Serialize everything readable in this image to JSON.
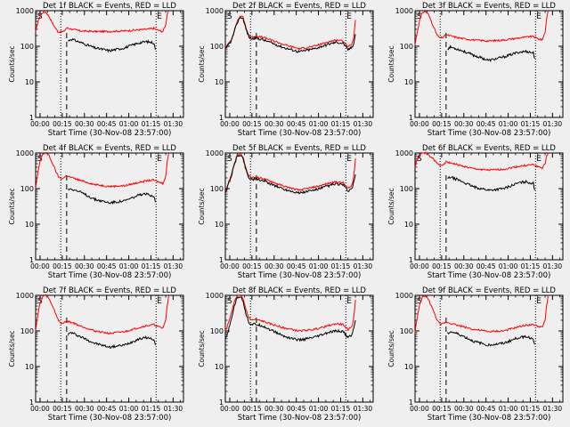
{
  "chart_data": {
    "type": "line",
    "layout": "3x3 grid",
    "xlabel": "Start Time (30-Nov-08 23:57:00)",
    "ylabel": "Counts/sec",
    "yscale": "log",
    "ylim": [
      1,
      1000
    ],
    "xlim_minutes": [
      0,
      100
    ],
    "x_tick_labels": [
      "00:00",
      "00:15",
      "00:30",
      "00:45",
      "01:00",
      "01:15",
      "01:30"
    ],
    "x_tick_minutes": [
      3,
      18,
      33,
      48,
      63,
      78,
      93
    ],
    "y_tick_labels": [
      "1",
      "10",
      "100",
      "1000"
    ],
    "y_tick_values": [
      1,
      10,
      100,
      1000
    ],
    "start_marker": "S",
    "end_marker": "E",
    "start_marker_minute": 17,
    "end_marker_minute": 81.5,
    "dashed_marker_minute": 21,
    "colors": {
      "events": "#000000",
      "lld": "#ff0000",
      "background": "#efefef"
    },
    "panels": [
      {
        "title": "Det 1f BLACK = Events, RED = LLD",
        "events": {
          "x": [
            22,
            24,
            30,
            40,
            50,
            60,
            70,
            75,
            80,
            81
          ],
          "y": [
            140,
            160,
            130,
            90,
            75,
            90,
            125,
            135,
            125,
            80
          ]
        },
        "lld": {
          "x": [
            0,
            1,
            3,
            5,
            7,
            9,
            12,
            15,
            17,
            19,
            21,
            25,
            30,
            40,
            50,
            60,
            70,
            75,
            80,
            82,
            86,
            88,
            89,
            90
          ],
          "y": [
            240,
            400,
            700,
            900,
            900,
            700,
            400,
            260,
            250,
            260,
            330,
            300,
            270,
            260,
            260,
            270,
            290,
            300,
            320,
            290,
            260,
            400,
            800,
            1000
          ]
        }
      },
      {
        "title": "Det 2f BLACK = Events, RED = LLD",
        "events": {
          "x": [
            0,
            1,
            2,
            4,
            6,
            8,
            10,
            12,
            14,
            16,
            18,
            20,
            25,
            30,
            40,
            50,
            60,
            70,
            75,
            80,
            81,
            83,
            85,
            86,
            87,
            88
          ],
          "y": [
            80,
            90,
            110,
            140,
            250,
            450,
            650,
            600,
            300,
            180,
            160,
            170,
            155,
            130,
            90,
            70,
            85,
            115,
            130,
            120,
            100,
            80,
            90,
            100,
            130,
            220
          ]
        },
        "lld": {
          "x": [
            0,
            1,
            2,
            4,
            6,
            8,
            10,
            12,
            14,
            16,
            18,
            20,
            25,
            30,
            40,
            50,
            60,
            70,
            75,
            80,
            81,
            83,
            85,
            86,
            87,
            88
          ],
          "y": [
            85,
            100,
            120,
            150,
            270,
            500,
            700,
            650,
            330,
            200,
            180,
            190,
            180,
            155,
            110,
            85,
            100,
            135,
            150,
            140,
            120,
            95,
            110,
            130,
            200,
            550
          ]
        }
      },
      {
        "title": "Det 3f BLACK = Events, RED = LLD",
        "events": {
          "x": [
            22,
            24,
            30,
            40,
            50,
            60,
            70,
            75,
            80,
            81
          ],
          "y": [
            85,
            95,
            80,
            55,
            40,
            50,
            68,
            72,
            65,
            45
          ]
        },
        "lld": {
          "x": [
            0,
            1,
            3,
            5,
            7,
            9,
            12,
            15,
            17,
            19,
            21,
            25,
            30,
            40,
            50,
            60,
            70,
            75,
            80,
            82,
            86,
            88,
            89,
            90
          ],
          "y": [
            110,
            200,
            500,
            900,
            950,
            800,
            400,
            200,
            170,
            180,
            210,
            190,
            170,
            150,
            140,
            150,
            170,
            180,
            190,
            170,
            150,
            250,
            600,
            1000
          ]
        }
      },
      {
        "title": "Det 4f BLACK = Events, RED = LLD",
        "events": {
          "x": [
            22,
            24,
            30,
            40,
            50,
            60,
            70,
            75,
            80,
            81
          ],
          "y": [
            95,
            100,
            80,
            50,
            40,
            45,
            65,
            70,
            62,
            42
          ]
        },
        "lld": {
          "x": [
            0,
            1,
            3,
            5,
            7,
            9,
            12,
            15,
            17,
            19,
            21,
            25,
            30,
            40,
            50,
            60,
            70,
            75,
            80,
            82,
            86,
            88,
            89,
            90
          ],
          "y": [
            100,
            200,
            600,
            950,
            1000,
            850,
            450,
            230,
            190,
            200,
            230,
            200,
            170,
            130,
            115,
            120,
            150,
            165,
            175,
            160,
            140,
            220,
            550,
            1000
          ]
        }
      },
      {
        "title": "Det 5f BLACK = Events, RED = LLD",
        "events": {
          "x": [
            0,
            1,
            2,
            4,
            6,
            8,
            10,
            12,
            14,
            16,
            18,
            20,
            25,
            30,
            40,
            50,
            60,
            70,
            75,
            80,
            81,
            83,
            85,
            86,
            87,
            88
          ],
          "y": [
            80,
            95,
            130,
            220,
            450,
            800,
            900,
            700,
            330,
            200,
            180,
            185,
            170,
            140,
            95,
            75,
            90,
            120,
            135,
            125,
            105,
            85,
            95,
            110,
            150,
            250
          ]
        },
        "lld": {
          "x": [
            0,
            1,
            2,
            4,
            6,
            8,
            10,
            12,
            14,
            16,
            18,
            20,
            25,
            30,
            40,
            50,
            60,
            70,
            75,
            80,
            81,
            83,
            85,
            86,
            87,
            88
          ],
          "y": [
            85,
            105,
            140,
            240,
            500,
            850,
            950,
            750,
            360,
            220,
            200,
            210,
            195,
            165,
            115,
            90,
            110,
            140,
            155,
            145,
            125,
            100,
            115,
            140,
            250,
            700
          ]
        }
      },
      {
        "title": "Det 6f BLACK = Events, RED = LLD",
        "events": {
          "x": [
            22,
            24,
            30,
            40,
            50,
            60,
            70,
            75,
            80,
            81
          ],
          "y": [
            190,
            210,
            170,
            110,
            90,
            100,
            145,
            155,
            140,
            90
          ]
        },
        "lld": {
          "x": [
            0,
            1,
            3,
            5,
            7,
            9,
            12,
            15,
            17,
            19,
            21,
            25,
            30,
            40,
            50,
            60,
            70,
            75,
            80,
            82,
            86,
            88,
            89,
            90
          ],
          "y": [
            400,
            600,
            850,
            1000,
            1000,
            900,
            700,
            500,
            450,
            480,
            560,
            520,
            450,
            360,
            330,
            350,
            420,
            450,
            470,
            430,
            380,
            500,
            800,
            1000
          ]
        }
      },
      {
        "title": "Det 7f BLACK = Events, RED = LLD",
        "events": {
          "x": [
            22,
            24,
            30,
            40,
            50,
            60,
            70,
            75,
            80,
            81
          ],
          "y": [
            80,
            90,
            70,
            45,
            35,
            40,
            60,
            65,
            58,
            40
          ]
        },
        "lld": {
          "x": [
            0,
            1,
            3,
            5,
            7,
            9,
            12,
            15,
            17,
            19,
            21,
            25,
            30,
            40,
            50,
            60,
            70,
            75,
            80,
            82,
            86,
            88,
            89,
            90
          ],
          "y": [
            100,
            220,
            600,
            950,
            1000,
            800,
            450,
            220,
            160,
            170,
            190,
            170,
            140,
            100,
            85,
            95,
            125,
            140,
            150,
            135,
            120,
            200,
            500,
            1000
          ]
        }
      },
      {
        "title": "Det 8f BLACK = Events, RED = LLD",
        "events": {
          "x": [
            0,
            1,
            2,
            4,
            6,
            8,
            10,
            12,
            14,
            16,
            18,
            20,
            25,
            30,
            40,
            50,
            60,
            70,
            75,
            80,
            81,
            83,
            85,
            86,
            87,
            88
          ],
          "y": [
            60,
            70,
            100,
            200,
            500,
            850,
            950,
            700,
            300,
            170,
            150,
            155,
            140,
            110,
            70,
            55,
            65,
            90,
            100,
            95,
            80,
            65,
            75,
            90,
            120,
            200
          ]
        },
        "lld": {
          "x": [
            0,
            1,
            2,
            4,
            6,
            8,
            10,
            12,
            14,
            16,
            18,
            20,
            25,
            30,
            40,
            50,
            60,
            70,
            75,
            80,
            81,
            83,
            85,
            86,
            87,
            88
          ],
          "y": [
            100,
            120,
            170,
            300,
            650,
            950,
            1000,
            800,
            400,
            230,
            200,
            210,
            190,
            160,
            120,
            100,
            110,
            140,
            160,
            150,
            130,
            110,
            125,
            150,
            260,
            750
          ]
        }
      },
      {
        "title": "Det 9f BLACK = Events, RED = LLD",
        "events": {
          "x": [
            22,
            24,
            30,
            40,
            50,
            60,
            70,
            75,
            80,
            81
          ],
          "y": [
            85,
            95,
            80,
            50,
            40,
            45,
            65,
            70,
            60,
            42
          ]
        },
        "lld": {
          "x": [
            0,
            1,
            3,
            5,
            7,
            9,
            12,
            15,
            17,
            19,
            21,
            25,
            30,
            40,
            50,
            60,
            70,
            75,
            80,
            82,
            86,
            88,
            89,
            90
          ],
          "y": [
            90,
            180,
            500,
            900,
            950,
            800,
            400,
            200,
            150,
            160,
            180,
            160,
            140,
            110,
            95,
            100,
            130,
            145,
            150,
            140,
            125,
            200,
            500,
            1000
          ]
        }
      }
    ]
  }
}
